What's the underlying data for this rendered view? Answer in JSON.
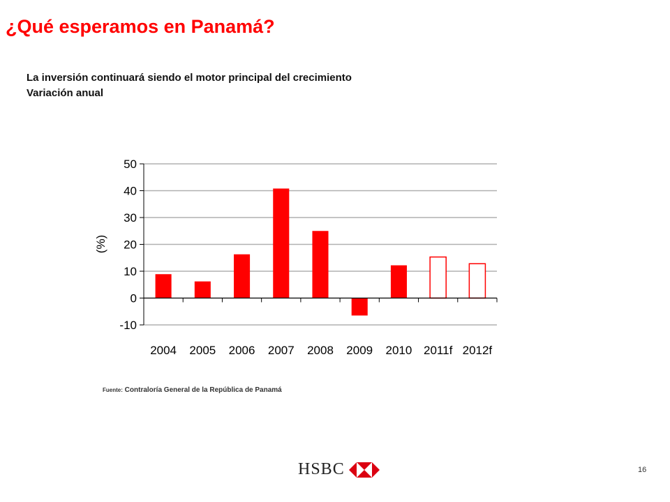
{
  "slide": {
    "title": "¿Qué esperamos en Panamá?",
    "subtitle_line1": "La inversión continuará siendo el motor principal del crecimiento",
    "subtitle_line2": "Variación anual",
    "source_prefix": "Fuente:",
    "source_text": "Contraloría General de la República de Panamá",
    "logo_text": "HSBC",
    "page_number": "16"
  },
  "colors": {
    "title": "#ff0000",
    "bar_fill": "#ff0000",
    "bar_outline": "#ff0000",
    "grid": "#b0b0b0"
  },
  "chart_data": {
    "type": "bar",
    "title": "",
    "xlabel": "",
    "ylabel": "(%)",
    "ylim": [
      -10,
      50
    ],
    "yticks": [
      -10,
      0,
      10,
      20,
      30,
      40,
      50
    ],
    "ytick_labels": [
      "-10",
      "0",
      "10",
      "20",
      "30",
      "40",
      "50"
    ],
    "grid": true,
    "legend": "none",
    "categories": [
      "2004",
      "2005",
      "2006",
      "2007",
      "2008",
      "2009",
      "2010",
      "2011f",
      "2012f"
    ],
    "values": [
      8.9,
      6.2,
      16.3,
      40.8,
      25.0,
      -6.5,
      12.2,
      15.3,
      12.8
    ],
    "styles": [
      "solid",
      "solid",
      "solid",
      "solid",
      "solid",
      "solid",
      "solid",
      "outline",
      "outline"
    ]
  }
}
